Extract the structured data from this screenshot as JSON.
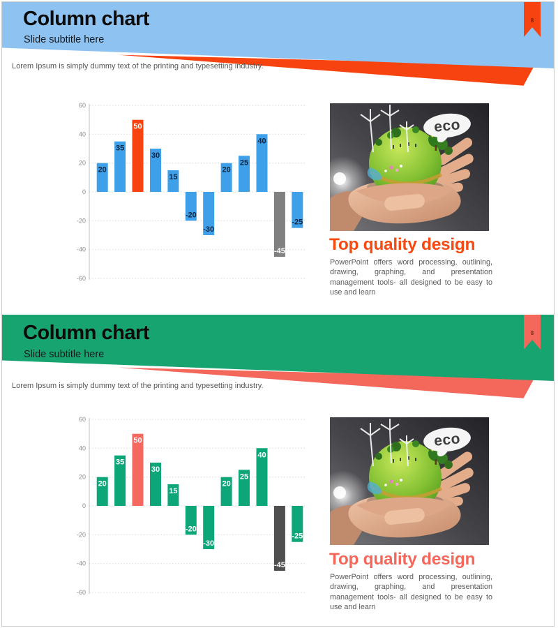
{
  "slides": [
    {
      "title": "Column chart",
      "subtitle": "Slide subtitle here",
      "page_number": "8",
      "lorem": "Lorem Ipsum is simply dummy text of the printing and typesetting industry.",
      "heading": "Top quality design",
      "body": "PowerPoint offers word processing, outlining, drawing, graphing, and presentation management tools- all designed to be easy to use and learn",
      "image_label": "eco",
      "theme": {
        "band": "#8EC2F0",
        "stripe": "#F6430F",
        "ribbon": "#F6430F",
        "ribbon_number_color": "#7A2000",
        "heading_color": "#F64A12"
      }
    },
    {
      "title": "Column chart",
      "subtitle": "Slide subtitle here",
      "page_number": "8",
      "lorem": "Lorem Ipsum is simply dummy text of the printing and typesetting industry.",
      "heading": "Top quality design",
      "body": "PowerPoint offers word processing, outlining, drawing, graphing, and presentation management tools- all designed to be easy to use and learn",
      "image_label": "eco",
      "theme": {
        "band": "#17A470",
        "stripe": "#F4685C",
        "ribbon": "#F4685C",
        "ribbon_number_color": "#7E2B1E",
        "heading_color": "#F4685C"
      }
    }
  ],
  "chart_data": [
    {
      "type": "bar",
      "title": "",
      "xlabel": "",
      "ylabel": "",
      "values": [
        20,
        35,
        50,
        30,
        15,
        -20,
        -30,
        20,
        25,
        40,
        -45,
        -25
      ],
      "ylim": [
        -60,
        60
      ],
      "yticks": [
        60,
        40,
        20,
        0,
        -20,
        -40,
        -60
      ],
      "grid": "horizontal-dashed",
      "legend": false,
      "bar_colors": {
        "default": "#3FA0EA",
        "overrides": {
          "2": "#F6430F",
          "10": "#808080"
        }
      },
      "label_colors": {
        "default": "#12253F",
        "overrides": {
          "2": "#FFFFFF",
          "10": "#FFFFFF"
        }
      }
    },
    {
      "type": "bar",
      "title": "",
      "xlabel": "",
      "ylabel": "",
      "values": [
        20,
        35,
        50,
        30,
        15,
        -20,
        -30,
        20,
        25,
        40,
        -45,
        -25
      ],
      "ylim": [
        -60,
        60
      ],
      "yticks": [
        60,
        40,
        20,
        0,
        -20,
        -40,
        -60
      ],
      "grid": "horizontal-dashed",
      "legend": false,
      "bar_colors": {
        "default": "#0CA678",
        "overrides": {
          "2": "#F5685F",
          "10": "#4F4F4F"
        }
      },
      "label_colors": {
        "default": "#FFFFFF",
        "overrides": {}
      }
    }
  ]
}
